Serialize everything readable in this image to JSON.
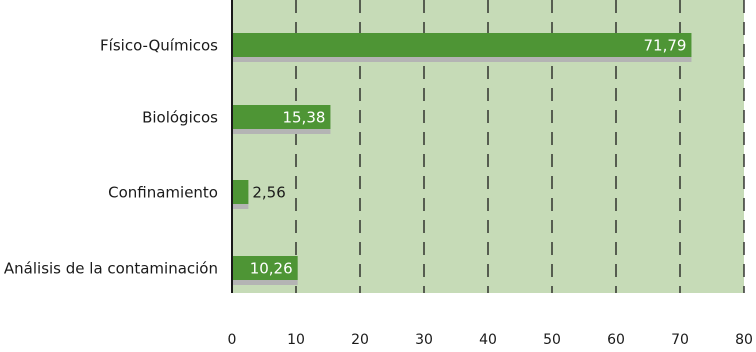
{
  "chart_data": {
    "type": "bar",
    "orientation": "horizontal",
    "categories": [
      "Físico-Químicos",
      "Biológicos",
      "Confinamiento",
      "Análisis de la contaminación"
    ],
    "values": [
      71.79,
      15.38,
      2.56,
      10.26
    ],
    "value_labels": [
      "71,79",
      "15,38",
      "2,56",
      "10,26"
    ],
    "xlim": [
      0,
      80
    ],
    "xticks": [
      0,
      10,
      20,
      30,
      40,
      50,
      60,
      70,
      80
    ],
    "xtick_labels": [
      "0",
      "10",
      "20",
      "30",
      "40",
      "50",
      "60",
      "70",
      "80"
    ],
    "grid": "vertical dashed",
    "bar_color": "#4e9535",
    "shadow_color": "#b4b4b4",
    "plot_background": "#c6dbb7",
    "title": "",
    "xlabel": "",
    "ylabel": ""
  }
}
